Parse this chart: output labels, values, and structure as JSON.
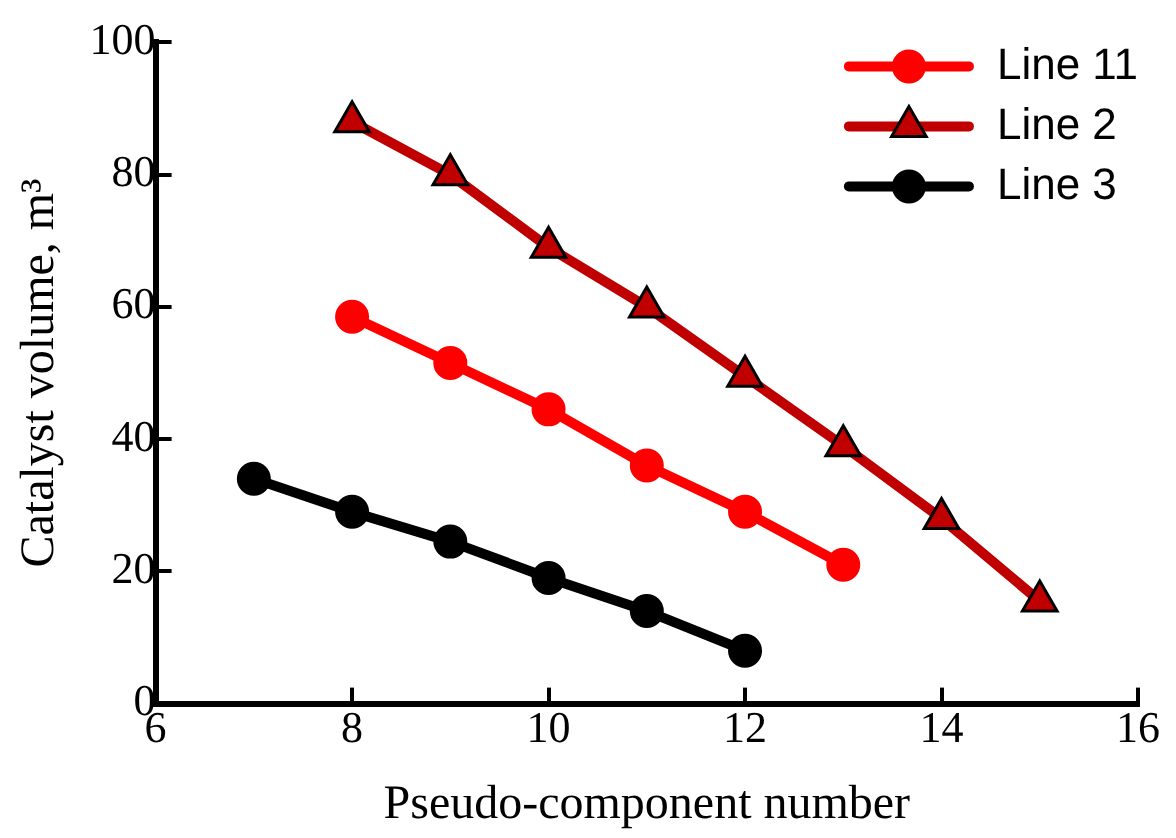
{
  "chart_data": {
    "type": "line",
    "xlabel": "Pseudo-component number",
    "ylabel": "Catalyst volume, m³",
    "xlim": [
      6,
      16
    ],
    "xticks": [
      6,
      8,
      10,
      12,
      14,
      16
    ],
    "ylim": [
      0,
      100
    ],
    "yticks": [
      0,
      20,
      40,
      60,
      80,
      100
    ],
    "grid": false,
    "legend": "top right",
    "series": [
      {
        "name": "Line 11",
        "color": "#ff0000",
        "marker": "circle",
        "x": [
          8,
          9,
          10,
          11,
          12,
          13
        ],
        "values": [
          58.5,
          51.5,
          44.5,
          36,
          29,
          21
        ]
      },
      {
        "name": "Line 2",
        "color": "#c00000",
        "marker": "triangle",
        "x": [
          8,
          9,
          10,
          11,
          12,
          13,
          14,
          15
        ],
        "values": [
          88,
          80,
          69,
          60,
          49.5,
          39,
          28,
          15.5
        ]
      },
      {
        "name": "Line 3",
        "color": "#000000",
        "marker": "circle",
        "x": [
          7,
          8,
          9,
          10,
          11,
          12
        ],
        "values": [
          34,
          29,
          24.5,
          19,
          14,
          8
        ]
      }
    ]
  }
}
